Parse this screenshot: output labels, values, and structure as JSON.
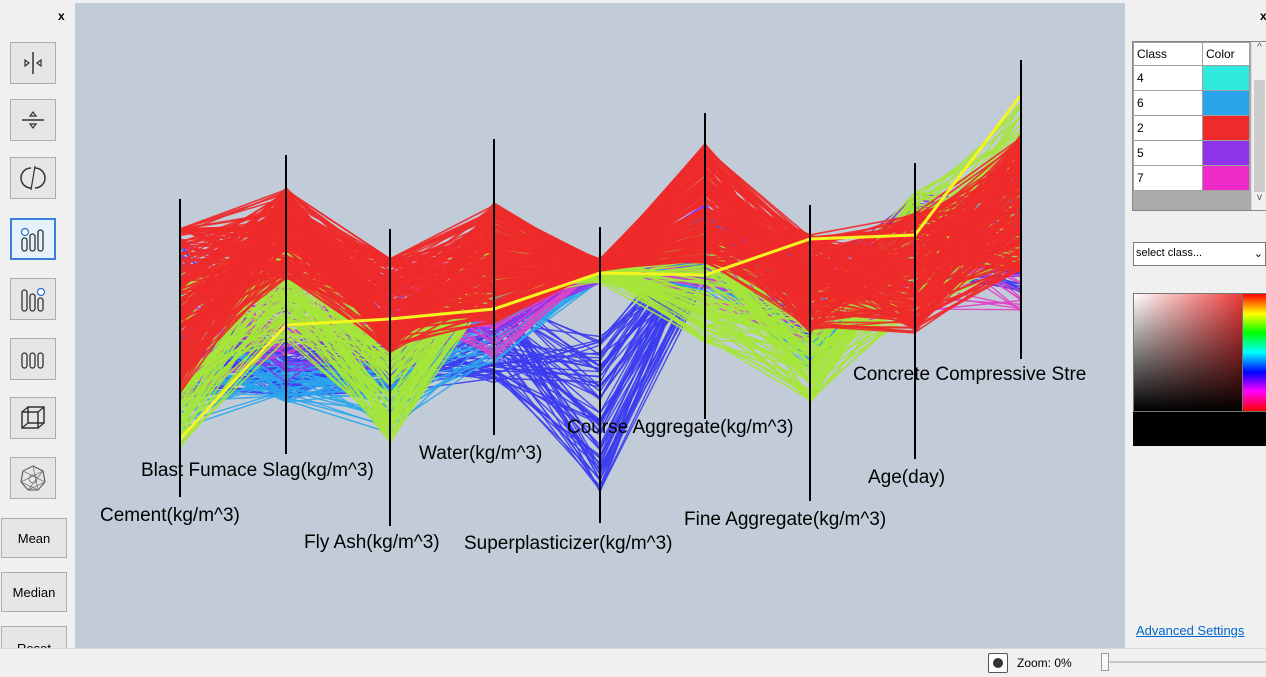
{
  "left_panel": {
    "close_label": "x",
    "tools": [
      {
        "icon": "horizontal-resize-icon"
      },
      {
        "icon": "vertical-resize-icon"
      },
      {
        "icon": "rotate-icon"
      },
      {
        "icon": "shift-axes-left-icon",
        "active": true
      },
      {
        "icon": "shift-axes-right-icon"
      },
      {
        "icon": "equal-axes-icon"
      },
      {
        "icon": "3d-cube-icon"
      },
      {
        "icon": "star-plot-icon"
      }
    ],
    "mean_label": "Mean",
    "median_label": "Median",
    "reset_label": "Reset"
  },
  "right_panel": {
    "close_label": "x",
    "table": {
      "headers": [
        "Class",
        "Color"
      ],
      "rows": [
        {
          "class": "4",
          "color": "#2fe9df"
        },
        {
          "class": "6",
          "color": "#2aa5ec"
        },
        {
          "class": "2",
          "color": "#ee2a2a"
        },
        {
          "class": "5",
          "color": "#8e33ea"
        },
        {
          "class": "7",
          "color": "#ee2bc8"
        }
      ]
    },
    "select_placeholder": "select class...",
    "advanced_settings_label": "Advanced Settings"
  },
  "status_bar": {
    "zoom_label": "Zoom: 0%"
  },
  "chart_data": {
    "type": "parallel-coordinates",
    "axes": [
      "Cement(kg/m^3)",
      "Blast Fumace Slag(kg/m^3)",
      "Fly Ash(kg/m^3)",
      "Water(kg/m^3)",
      "Superplasticizer(kg/m^3)",
      "Course Aggregate(kg/m^3)",
      "Fine Aggregate(kg/m^3)",
      "Age(day)",
      "Concrete Compressive Stre"
    ],
    "class_colors": {
      "blue": "#3b3bf0",
      "green": "#a5e63a",
      "red": "#ee2a2a",
      "cyan": "#2aa5ec",
      "magenta": "#e040c8",
      "purple": "#8e33ea",
      "yellow": "#f5f51f"
    }
  }
}
